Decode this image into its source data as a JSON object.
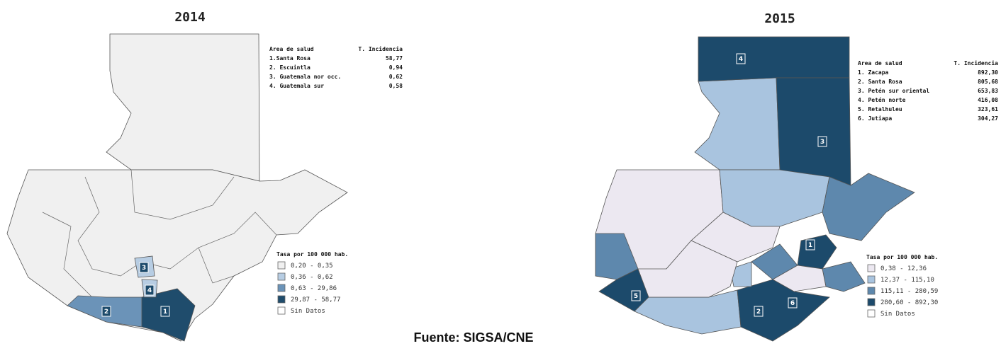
{
  "maps": [
    {
      "title": "2014",
      "table": {
        "header": [
          "Area de salud",
          "T. Incidencia"
        ],
        "rows": [
          [
            "1.Santa Rosa",
            "58,77"
          ],
          [
            "2. Escuintla",
            "0,94"
          ],
          [
            "3. Guatemala nor occ.",
            "0,62"
          ],
          [
            "4. Guatemala sur",
            "0,58"
          ]
        ]
      },
      "legend": {
        "title": "Tasa por 100 000 hab.",
        "items": [
          {
            "label": "0,20 - 0,35",
            "color": "#f0f0f0"
          },
          {
            "label": "0,36 - 0,62",
            "color": "#b7cde3"
          },
          {
            "label": "0,63 - 29,86",
            "color": "#6b93b8"
          },
          {
            "label": "29,87 - 58,77",
            "color": "#1f4c6c"
          },
          {
            "label": "Sin Datos",
            "color": "#ffffff"
          }
        ]
      },
      "markers": [
        "1",
        "2",
        "3",
        "4"
      ]
    },
    {
      "title": "2015",
      "table": {
        "header": [
          "Area de salud",
          "T. Incidencia"
        ],
        "rows": [
          [
            "1. Zacapa",
            "892,30"
          ],
          [
            "2. Santa Rosa",
            "805,68"
          ],
          [
            "3. Petén sur oriental",
            "653,83"
          ],
          [
            "4. Petén norte",
            "416,08"
          ],
          [
            "5. Retalhuleu",
            "323,61"
          ],
          [
            "6. Jutiapa",
            "304,27"
          ]
        ]
      },
      "legend": {
        "title": "Tasa por 100 000 hab.",
        "items": [
          {
            "label": "0,38 - 12,36",
            "color": "#ece8f1"
          },
          {
            "label": "12,37 - 115,10",
            "color": "#a9c4df"
          },
          {
            "label": "115,11 - 280,59",
            "color": "#5e88ad"
          },
          {
            "label": "280,60 - 892,30",
            "color": "#1c4a6b"
          },
          {
            "label": "Sin Datos",
            "color": "#ffffff"
          }
        ]
      },
      "markers": [
        "1",
        "2",
        "3",
        "4",
        "5",
        "6"
      ]
    }
  ],
  "source": "Fuente: SIGSA/CNE"
}
